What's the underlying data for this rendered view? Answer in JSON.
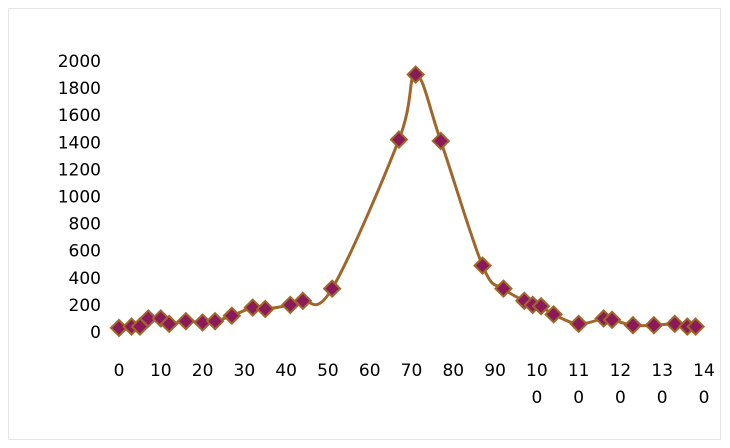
{
  "chart_data": {
    "type": "scatter",
    "title": "",
    "xlabel": "",
    "ylabel": "",
    "xlim": [
      0,
      140
    ],
    "ylim": [
      0,
      2000
    ],
    "grid": false,
    "legend": "none",
    "x_ticks": [
      0,
      10,
      20,
      30,
      40,
      50,
      60,
      70,
      80,
      90,
      100,
      110,
      120,
      130,
      140
    ],
    "x_tick_labels": [
      [
        "0"
      ],
      [
        "10"
      ],
      [
        "20"
      ],
      [
        "30"
      ],
      [
        "40"
      ],
      [
        "50"
      ],
      [
        "60"
      ],
      [
        "70"
      ],
      [
        "80"
      ],
      [
        "90"
      ],
      [
        "10",
        "0"
      ],
      [
        "11",
        "0"
      ],
      [
        "12",
        "0"
      ],
      [
        "13",
        "0"
      ],
      [
        "14",
        "0"
      ]
    ],
    "y_ticks": [
      0,
      200,
      400,
      600,
      800,
      1000,
      1200,
      1400,
      1600,
      1800,
      2000
    ],
    "series": [
      {
        "line_color": "#a0672a",
        "marker_fill": "#8b1a5a",
        "marker_edge": "#a0672a",
        "marker": "diamond",
        "line": "smooth",
        "points": [
          [
            0,
            30
          ],
          [
            3,
            40
          ],
          [
            5,
            40
          ],
          [
            7,
            100
          ],
          [
            10,
            100
          ],
          [
            12,
            60
          ],
          [
            16,
            80
          ],
          [
            20,
            70
          ],
          [
            23,
            80
          ],
          [
            27,
            120
          ],
          [
            32,
            180
          ],
          [
            35,
            170
          ],
          [
            41,
            200
          ],
          [
            44,
            230
          ],
          [
            51,
            320
          ],
          [
            67,
            1420
          ],
          [
            71,
            1900
          ],
          [
            77,
            1410
          ],
          [
            87,
            490
          ],
          [
            92,
            320
          ],
          [
            97,
            230
          ],
          [
            99,
            200
          ],
          [
            101,
            190
          ],
          [
            104,
            130
          ],
          [
            110,
            60
          ],
          [
            116,
            100
          ],
          [
            118,
            90
          ],
          [
            123,
            50
          ],
          [
            128,
            50
          ],
          [
            133,
            60
          ],
          [
            136,
            40
          ],
          [
            138,
            40
          ]
        ]
      }
    ]
  }
}
